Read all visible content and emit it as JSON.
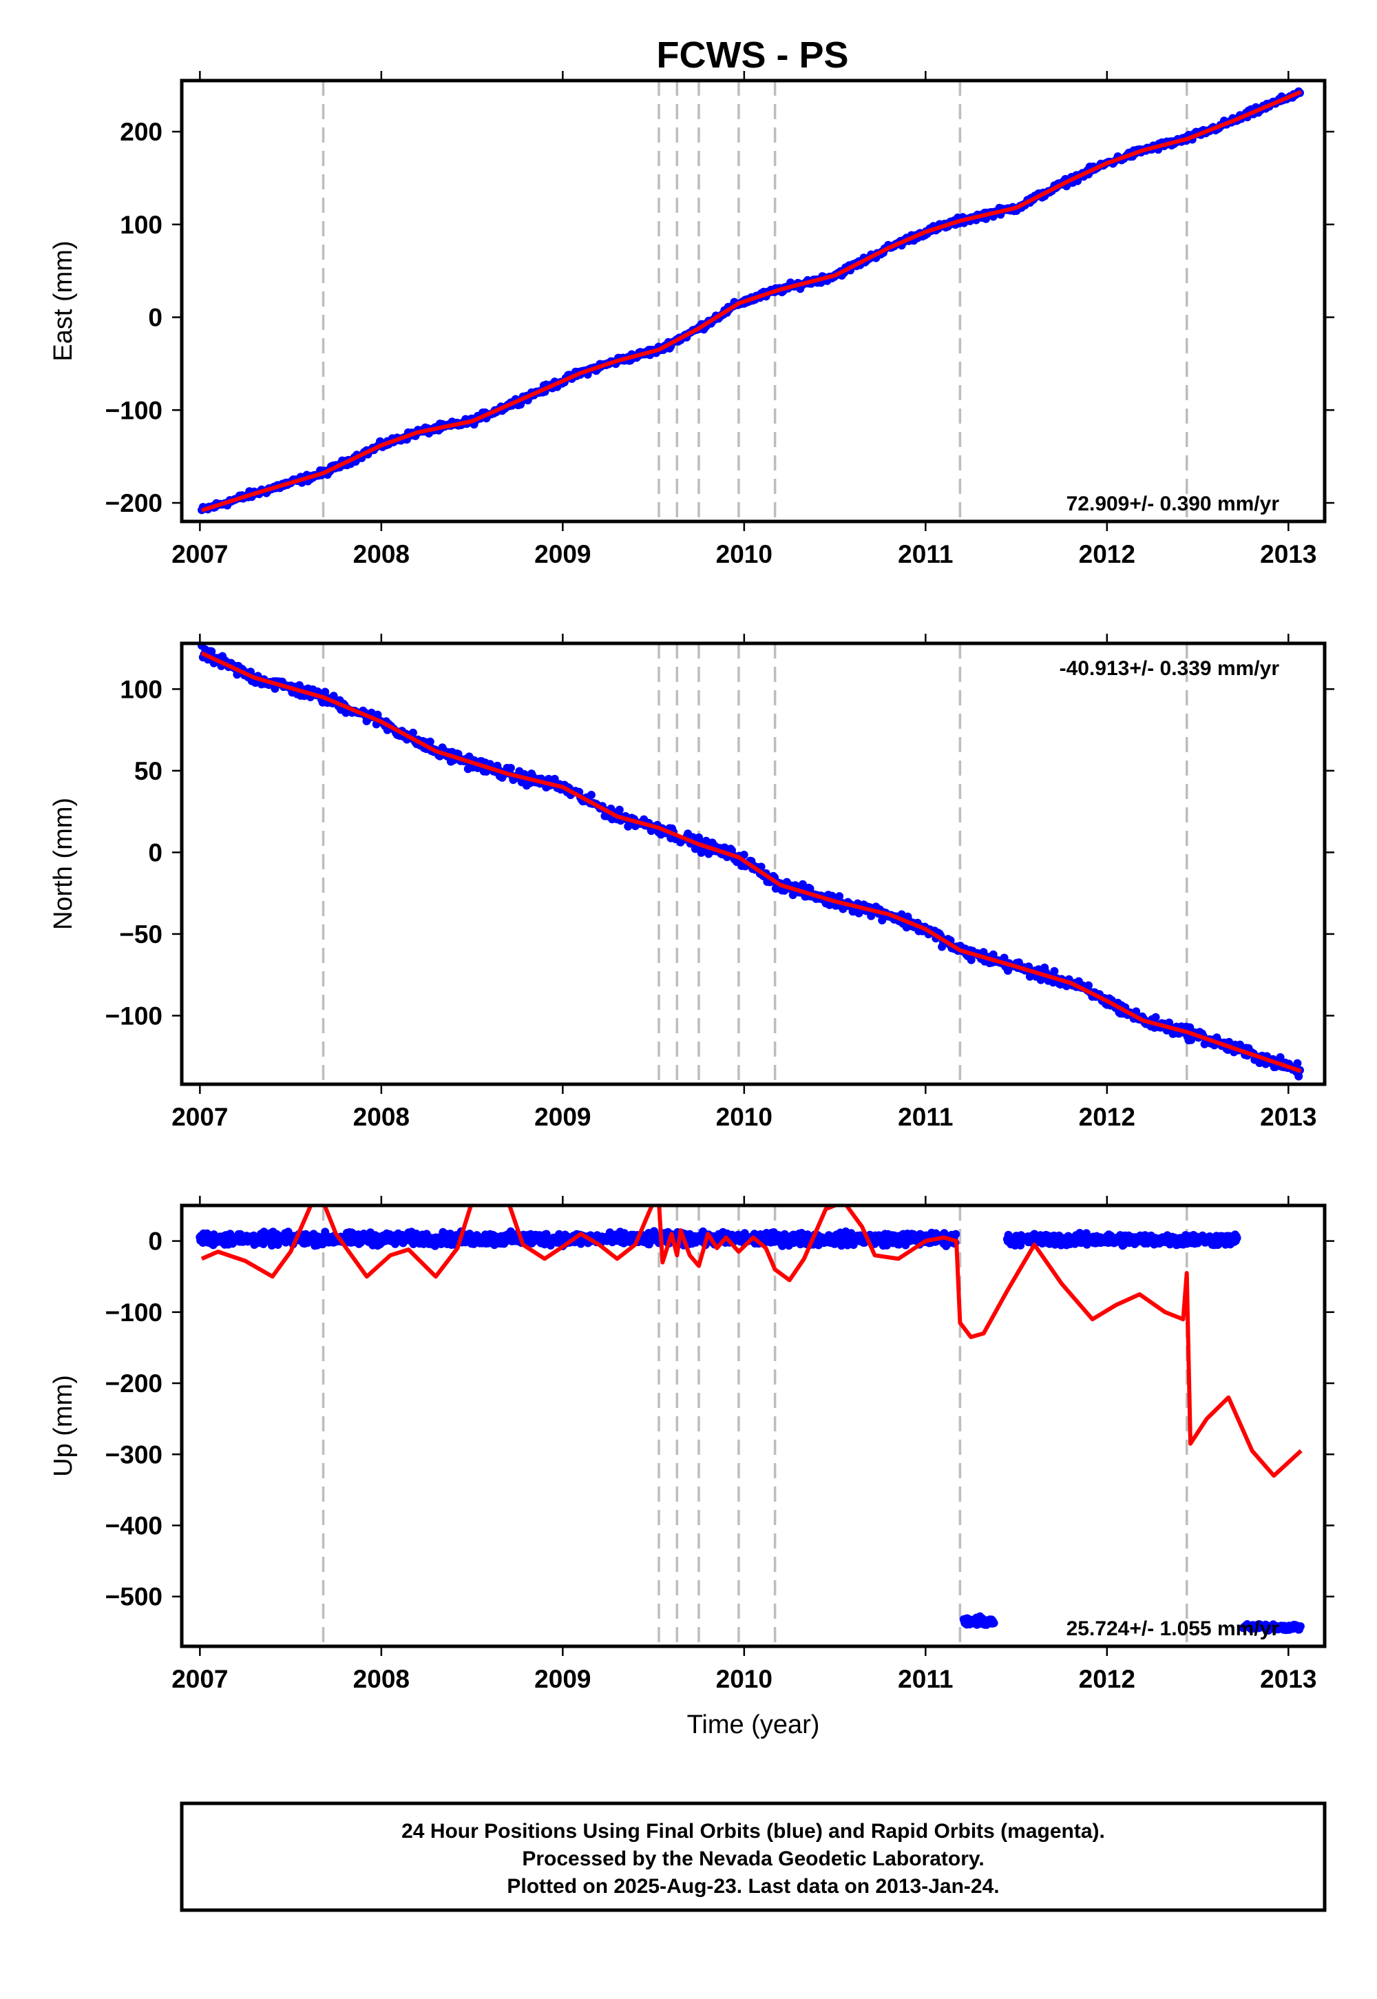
{
  "title": "FCWS - PS",
  "colors": {
    "data": "#0000ff",
    "fit": "#ff0000",
    "breaks": "#bdbdbd"
  },
  "footer": {
    "line1": "24 Hour Positions Using Final Orbits (blue) and Rapid Orbits (magenta).",
    "line2": "Processed by the Nevada Geodetic Laboratory.",
    "line3": "Plotted on 2025-Aug-23. Last data on 2013-Jan-24."
  },
  "chart_data": [
    {
      "type": "scatter",
      "component": "east",
      "ylabel": "East (mm)",
      "xlabel": "",
      "xlim": [
        2006.9,
        2013.2
      ],
      "ylim": [
        -220,
        255
      ],
      "xticks": [
        2007,
        2008,
        2009,
        2010,
        2011,
        2012,
        2013
      ],
      "yticks": [
        -200,
        -100,
        0,
        100,
        200
      ],
      "rate_label": "72.909+/- 0.390 mm/yr",
      "rate_position": "bottom-right",
      "breaks": [
        2007.68,
        2009.53,
        2009.63,
        2009.75,
        2009.97,
        2010.17,
        2011.19,
        2012.44
      ],
      "time_span": [
        2007.01,
        2013.07
      ],
      "fit": {
        "x": [
          2007.01,
          2007.3,
          2007.68,
          2008.0,
          2008.2,
          2008.5,
          2008.8,
          2009.1,
          2009.3,
          2009.53,
          2009.75,
          2009.97,
          2010.2,
          2010.5,
          2010.8,
          2011.0,
          2011.19,
          2011.5,
          2011.8,
          2012.0,
          2012.2,
          2012.44,
          2012.7,
          2013.07
        ],
        "y": [
          -208,
          -190,
          -168,
          -138,
          -124,
          -112,
          -86,
          -60,
          -47,
          -35,
          -12,
          15,
          30,
          45,
          75,
          92,
          104,
          118,
          148,
          166,
          180,
          192,
          212,
          243
        ]
      }
    },
    {
      "type": "scatter",
      "component": "north",
      "ylabel": "North (mm)",
      "xlabel": "",
      "xlim": [
        2006.9,
        2013.2
      ],
      "ylim": [
        -142,
        128
      ],
      "xticks": [
        2007,
        2008,
        2009,
        2010,
        2011,
        2012,
        2013
      ],
      "yticks": [
        -100,
        -50,
        0,
        50,
        100
      ],
      "rate_label": "-40.913+/- 0.339 mm/yr",
      "rate_position": "top-right",
      "breaks": [
        2007.68,
        2009.53,
        2009.63,
        2009.75,
        2009.97,
        2010.17,
        2011.19,
        2012.44
      ],
      "time_span": [
        2007.01,
        2013.07
      ],
      "fit": {
        "x": [
          2007.01,
          2007.3,
          2007.68,
          2008.0,
          2008.3,
          2008.7,
          2009.0,
          2009.3,
          2009.53,
          2009.75,
          2009.97,
          2010.2,
          2010.5,
          2010.8,
          2011.0,
          2011.19,
          2011.5,
          2011.8,
          2012.0,
          2012.2,
          2012.44,
          2012.7,
          2013.07
        ],
        "y": [
          122,
          107,
          95,
          80,
          62,
          48,
          40,
          22,
          15,
          5,
          -3,
          -20,
          -30,
          -38,
          -47,
          -60,
          -70,
          -80,
          -91,
          -103,
          -110,
          -120,
          -134
        ]
      }
    },
    {
      "type": "scatter",
      "component": "up",
      "ylabel": "Up (mm)",
      "xlabel": "Time (year)",
      "xlim": [
        2006.9,
        2013.2
      ],
      "ylim": [
        -570,
        50
      ],
      "xticks": [
        2007,
        2008,
        2009,
        2010,
        2011,
        2012,
        2013
      ],
      "yticks": [
        -500,
        -400,
        -300,
        -200,
        -100,
        0
      ],
      "rate_label": "25.724+/- 1.055 mm/yr",
      "rate_position": "bottom-right",
      "breaks": [
        2007.68,
        2009.53,
        2009.63,
        2009.75,
        2009.97,
        2010.17,
        2011.19,
        2012.44
      ],
      "data_segments": [
        {
          "x0": 2007.0,
          "x1": 2011.17,
          "level": 3,
          "spread": 12
        },
        {
          "x0": 2011.45,
          "x1": 2012.72,
          "level": 2,
          "spread": 11
        },
        {
          "x0": 2011.21,
          "x1": 2011.38,
          "level": -535,
          "spread": 8
        },
        {
          "x0": 2012.75,
          "x1": 2013.07,
          "level": -543,
          "spread": 6
        }
      ],
      "fit": {
        "x": [
          2007.01,
          2007.1,
          2007.25,
          2007.4,
          2007.5,
          2007.62,
          2007.68,
          2007.75,
          2007.92,
          2008.05,
          2008.15,
          2008.3,
          2008.42,
          2008.5,
          2008.6,
          2008.7,
          2008.78,
          2008.9,
          2009.0,
          2009.1,
          2009.2,
          2009.3,
          2009.4,
          2009.5,
          2009.53,
          2009.55,
          2009.6,
          2009.63,
          2009.65,
          2009.7,
          2009.75,
          2009.8,
          2009.85,
          2009.9,
          2009.97,
          2010.05,
          2010.12,
          2010.17,
          2010.25,
          2010.33,
          2010.45,
          2010.55,
          2010.65,
          2010.72,
          2010.85,
          2011.0,
          2011.1,
          2011.17,
          2011.19,
          2011.25,
          2011.32,
          2011.45,
          2011.6,
          2011.75,
          2011.92,
          2012.05,
          2012.18,
          2012.32,
          2012.42,
          2012.44,
          2012.46,
          2012.55,
          2012.67,
          2012.8,
          2012.92,
          2013.07
        ],
        "y": [
          -25,
          -15,
          -28,
          -50,
          -15,
          55,
          55,
          10,
          -50,
          -20,
          -12,
          -50,
          -10,
          55,
          70,
          55,
          -5,
          -25,
          -8,
          10,
          -5,
          -25,
          -5,
          55,
          55,
          -30,
          10,
          -20,
          15,
          -20,
          -35,
          10,
          -10,
          5,
          -15,
          5,
          -10,
          -40,
          -55,
          -25,
          45,
          55,
          20,
          -20,
          -25,
          0,
          5,
          0,
          -115,
          -135,
          -130,
          -70,
          -5,
          -60,
          -110,
          -90,
          -75,
          -100,
          -110,
          -45,
          -285,
          -250,
          -220,
          -295,
          -330,
          -295
        ]
      }
    }
  ]
}
